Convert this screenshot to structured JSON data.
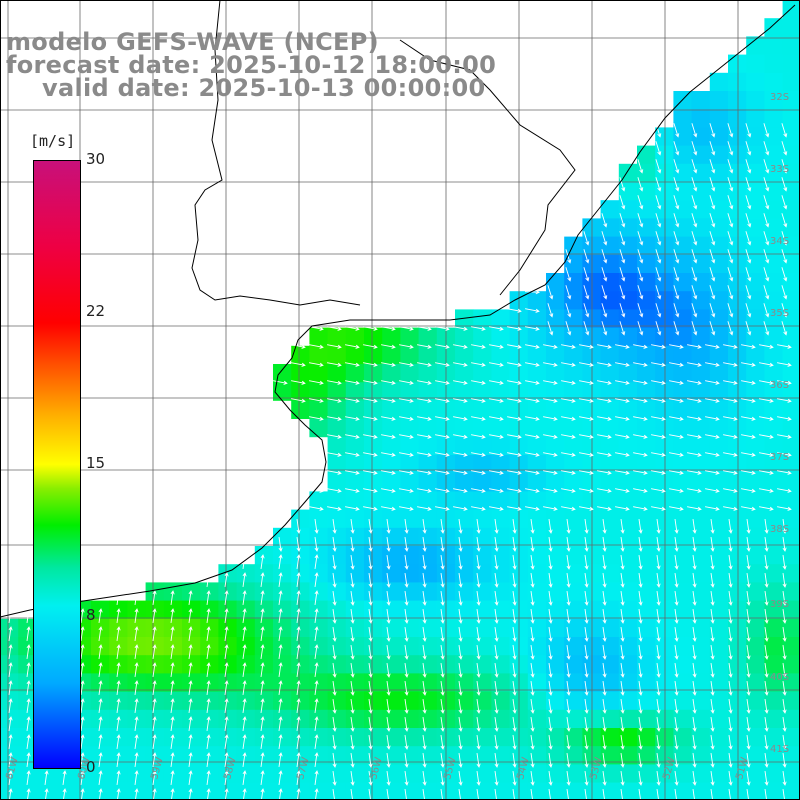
{
  "title": {
    "line1": "modelo GEFS-WAVE (NCEP)",
    "line2": "forecast date: 2025-10-12 18:00:00",
    "line3": "valid date: 2025-10-13 00:00:00"
  },
  "colorbar": {
    "unit": "[m/s]",
    "labels": [
      {
        "value": 30,
        "text": "30"
      },
      {
        "value": 22,
        "text": "22"
      },
      {
        "value": 15,
        "text": "15"
      },
      {
        "value": 8,
        "text": "8"
      },
      {
        "value": 0,
        "text": "0"
      }
    ],
    "min": 0,
    "max": 30
  },
  "axes": {
    "lon_labels": [
      "61W",
      "60W",
      "59W",
      "58W",
      "57W",
      "56W",
      "55W",
      "54W",
      "53W",
      "52W",
      "51W"
    ],
    "lat_labels": [
      "32S",
      "33S",
      "34S",
      "35S",
      "36S",
      "37S",
      "38S",
      "39S",
      "40S",
      "41S",
      "42S"
    ]
  },
  "colors": {
    "coast": "#000000",
    "grid": "#555555",
    "land": "#ffffff",
    "arrow": "#ffffff",
    "label": "#8a8a8a"
  },
  "regions": [
    {
      "name": "weak-wind-cell-north",
      "speed_range": [
        2,
        6
      ]
    },
    {
      "name": "weak-wind-band-south",
      "speed_range": [
        3,
        6
      ]
    },
    {
      "name": "moderate-wind-plata",
      "speed_range": [
        8,
        12
      ]
    },
    {
      "name": "strong-wind-southwest",
      "speed_range": [
        10,
        14
      ]
    }
  ]
}
